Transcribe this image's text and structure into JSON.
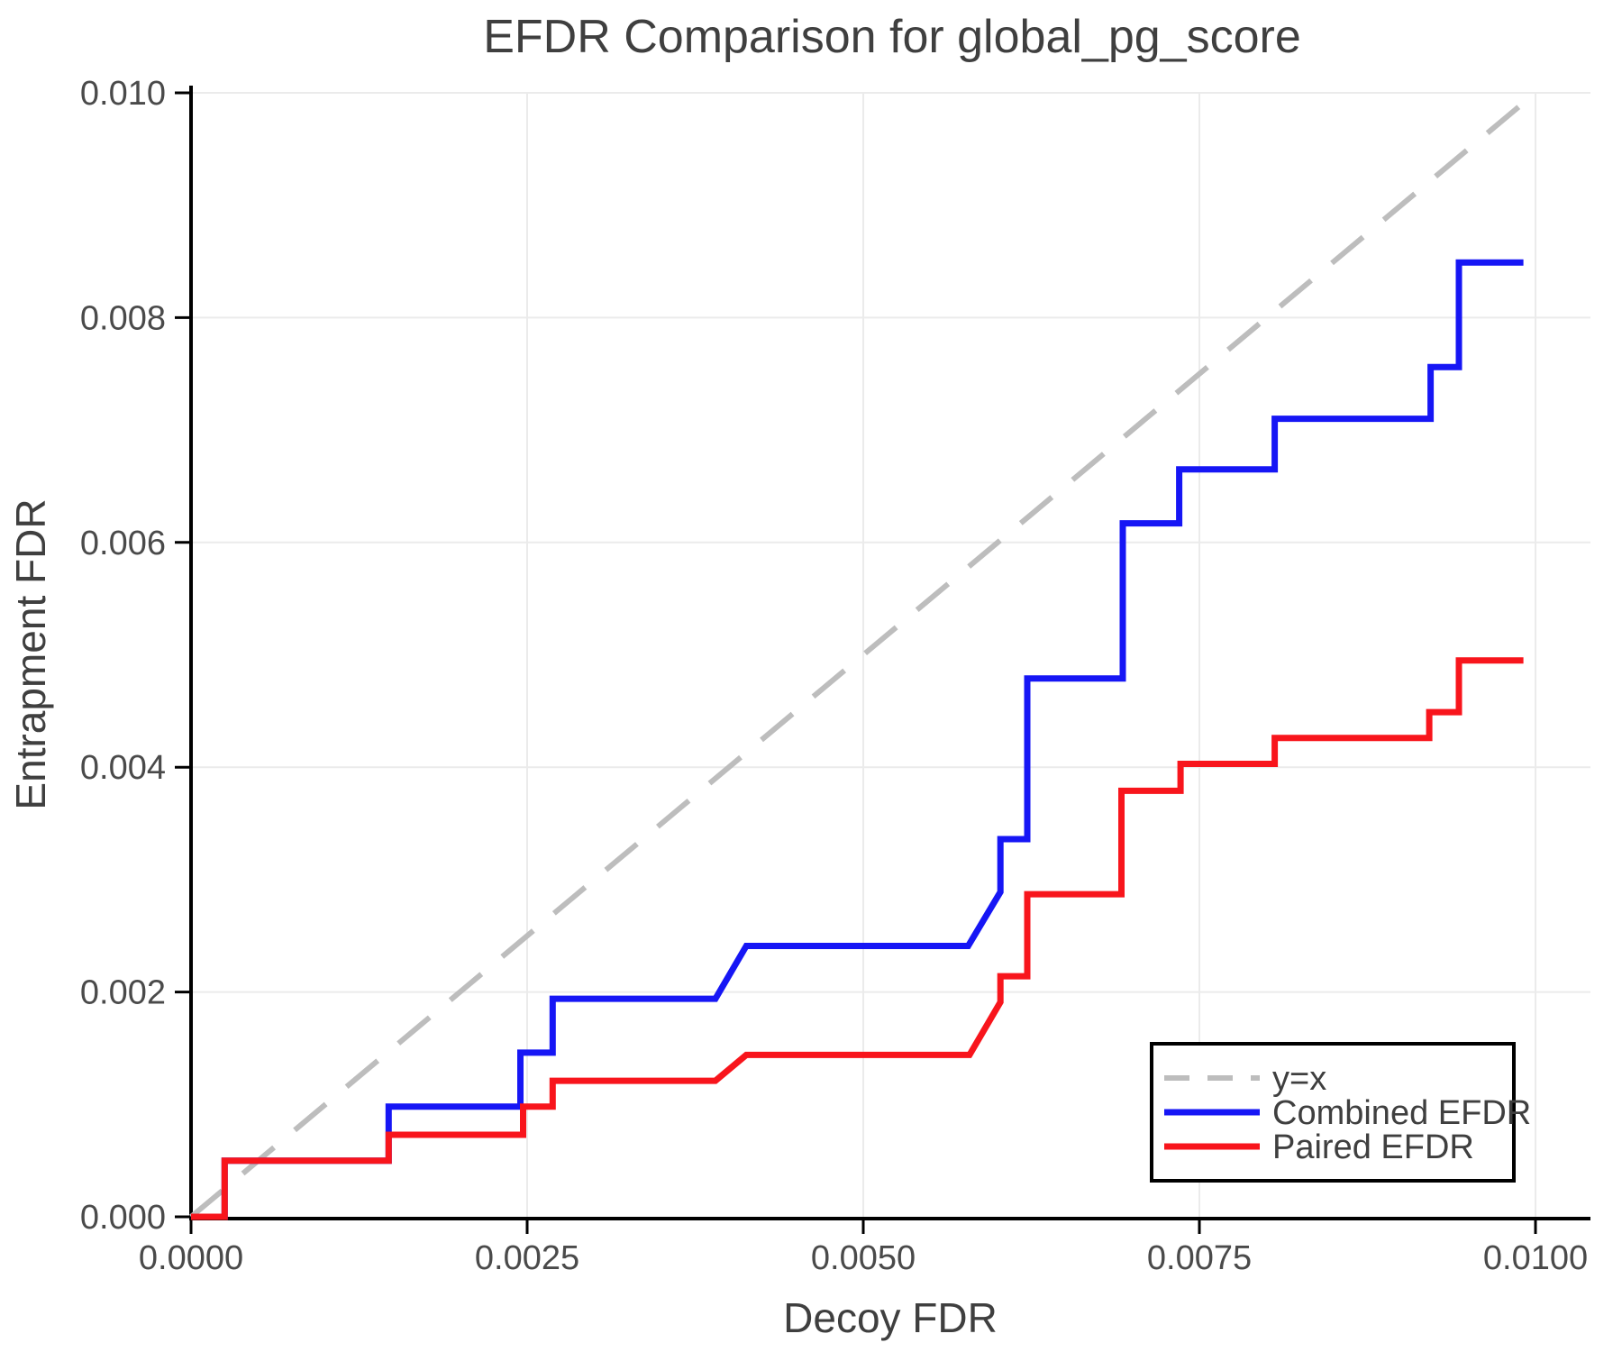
{
  "title": "EFDR Comparison for global_pg_score",
  "axes": {
    "x_label": "Decoy FDR",
    "y_label": "Entrapment FDR"
  },
  "colors": {
    "combined": "#1616f5",
    "paired": "#f8151c",
    "identity": "#bdbdbd",
    "grid": "#ebebeb",
    "spine": "#000000",
    "text": "#3f3f3f",
    "tick_text": "#4a4a4a",
    "legend_border": "#000000",
    "legend_bg": "#ffffff"
  },
  "legend": {
    "items": [
      {
        "label": "y=x",
        "color": "#bdbdbd",
        "dashed": true
      },
      {
        "label": "Combined EFDR",
        "color": "#1616f5",
        "dashed": false
      },
      {
        "label": "Paired EFDR",
        "color": "#f8151c",
        "dashed": false
      }
    ]
  },
  "chart_data": {
    "type": "line",
    "title": "EFDR Comparison for global_pg_score",
    "xlabel": "Decoy FDR",
    "ylabel": "Entrapment FDR",
    "xlim": [
      0,
      0.0104
    ],
    "ylim": [
      0,
      0.01
    ],
    "grid": true,
    "legend_position": "lower right",
    "x_tick_values": [
      0.0,
      0.0025,
      0.005,
      0.0075,
      0.01
    ],
    "x_tick_labels": [
      "0.0000",
      "0.0025",
      "0.0050",
      "0.0075",
      "0.0100"
    ],
    "y_tick_values": [
      0.0,
      0.002,
      0.004,
      0.006,
      0.008,
      0.01
    ],
    "y_tick_labels": [
      "0.000",
      "0.002",
      "0.004",
      "0.006",
      "0.008",
      "0.010"
    ],
    "series": [
      {
        "name": "y=x",
        "color": "#bdbdbd",
        "dashed": true,
        "width": 6,
        "points": [
          [
            0,
            0
          ],
          [
            0.0099,
            0.0099
          ]
        ]
      },
      {
        "name": "Combined EFDR",
        "color": "#1616f5",
        "dashed": false,
        "width": 7,
        "points": [
          [
            0,
            0
          ],
          [
            0.00025,
            0
          ],
          [
            0.00025,
            0.0005
          ],
          [
            0.00147,
            0.0005
          ],
          [
            0.00147,
            0.00098
          ],
          [
            0.00245,
            0.00098
          ],
          [
            0.00245,
            0.00146
          ],
          [
            0.00269,
            0.00146
          ],
          [
            0.00269,
            0.00194
          ],
          [
            0.0039,
            0.00194
          ],
          [
            0.00413,
            0.00241
          ],
          [
            0.00578,
            0.00241
          ],
          [
            0.00602,
            0.00289
          ],
          [
            0.00602,
            0.00336
          ],
          [
            0.00622,
            0.00336
          ],
          [
            0.00622,
            0.00479
          ],
          [
            0.00693,
            0.00479
          ],
          [
            0.00693,
            0.00617
          ],
          [
            0.00735,
            0.00617
          ],
          [
            0.00735,
            0.00665
          ],
          [
            0.00806,
            0.00665
          ],
          [
            0.00806,
            0.0071
          ],
          [
            0.00922,
            0.0071
          ],
          [
            0.00922,
            0.00756
          ],
          [
            0.00943,
            0.00756
          ],
          [
            0.00943,
            0.00849
          ],
          [
            0.00991,
            0.00849
          ]
        ]
      },
      {
        "name": "Paired EFDR",
        "color": "#f8151c",
        "dashed": false,
        "width": 7,
        "points": [
          [
            0,
            0
          ],
          [
            0.00025,
            0
          ],
          [
            0.00025,
            0.0005
          ],
          [
            0.00147,
            0.0005
          ],
          [
            0.00147,
            0.00073
          ],
          [
            0.00247,
            0.00073
          ],
          [
            0.00247,
            0.00098
          ],
          [
            0.00269,
            0.00098
          ],
          [
            0.00269,
            0.00121
          ],
          [
            0.0039,
            0.00121
          ],
          [
            0.00413,
            0.00144
          ],
          [
            0.00579,
            0.00144
          ],
          [
            0.00602,
            0.00191
          ],
          [
            0.00602,
            0.00214
          ],
          [
            0.00622,
            0.00214
          ],
          [
            0.00622,
            0.00287
          ],
          [
            0.00692,
            0.00287
          ],
          [
            0.00692,
            0.00379
          ],
          [
            0.00736,
            0.00379
          ],
          [
            0.00736,
            0.00403
          ],
          [
            0.00806,
            0.00403
          ],
          [
            0.00806,
            0.00426
          ],
          [
            0.00921,
            0.00426
          ],
          [
            0.00921,
            0.00449
          ],
          [
            0.00943,
            0.00449
          ],
          [
            0.00943,
            0.00495
          ],
          [
            0.00991,
            0.00495
          ]
        ]
      }
    ]
  }
}
